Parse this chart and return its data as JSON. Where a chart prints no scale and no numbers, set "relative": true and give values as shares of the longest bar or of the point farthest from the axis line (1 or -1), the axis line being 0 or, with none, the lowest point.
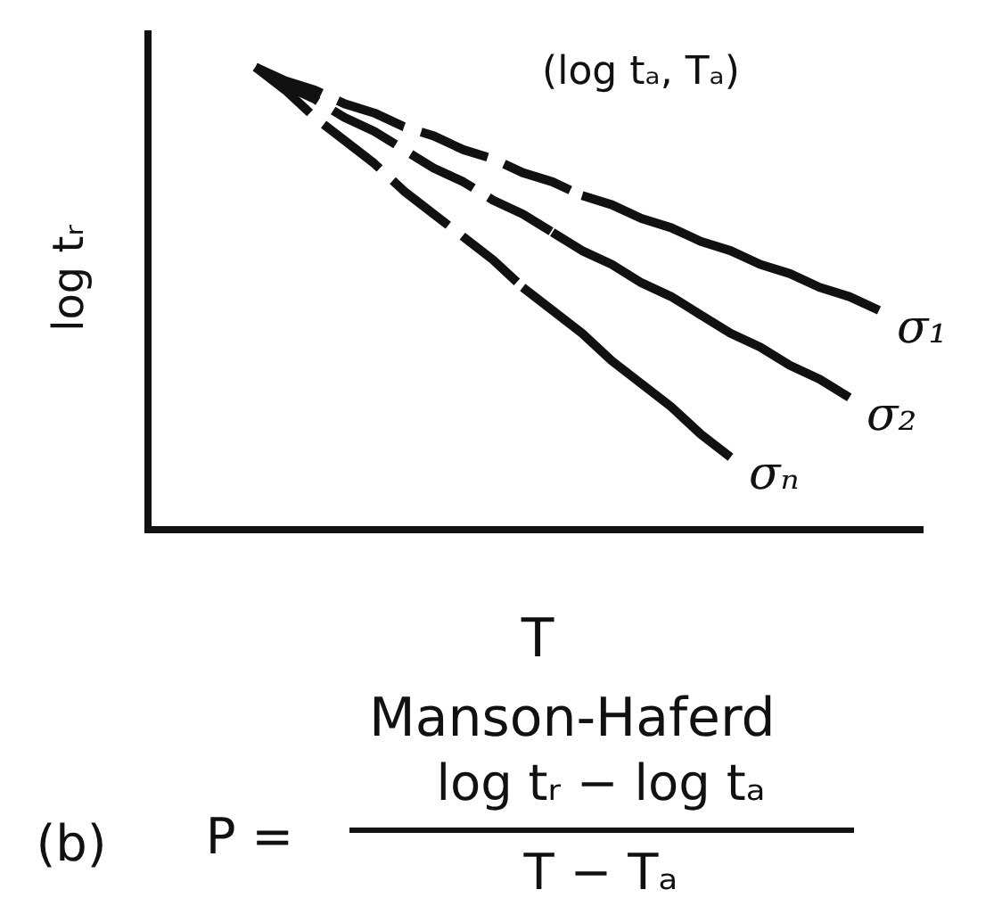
{
  "chart_data": {
    "type": "line",
    "relative": true,
    "title": "Manson-Haferd",
    "xlabel": "T",
    "ylabel": "log tᵣ",
    "annotations": [
      "(log tₐ, Tₐ)",
      "(b)",
      "P =",
      "log tᵣ − log tₐ",
      "T − Tₐ"
    ],
    "categories": [
      null,
      null,
      null,
      null,
      null,
      null,
      null,
      null,
      null,
      null,
      null,
      null,
      null,
      null,
      null,
      null,
      null,
      null,
      null,
      null,
      null,
      null,
      null,
      null,
      null,
      null
    ],
    "tick_labels": false,
    "series": [
      {
        "color": "#111111",
        "line_style": "dashed",
        "values": [
          null,
          null,
          null,
          1.0,
          0.97,
          0.95,
          0.92,
          0.9,
          0.87,
          0.85,
          0.82,
          0.8,
          0.77,
          0.75,
          0.72,
          null,
          null,
          null,
          null,
          null,
          null,
          null,
          null,
          null,
          null,
          null
        ]
      },
      {
        "name": "σ₁",
        "color": "#111111",
        "line_style": "solid",
        "values": [
          null,
          null,
          null,
          null,
          null,
          null,
          null,
          null,
          null,
          null,
          null,
          null,
          null,
          null,
          0.72,
          0.7,
          0.67,
          0.65,
          0.62,
          0.6,
          0.57,
          0.55,
          0.52,
          0.5,
          0.47,
          null
        ]
      },
      {
        "color": "#111111",
        "line_style": "dashed",
        "values": [
          null,
          null,
          null,
          1.0,
          0.96,
          0.93,
          0.89,
          0.86,
          0.82,
          0.78,
          0.75,
          0.71,
          0.68,
          0.64,
          null,
          null,
          null,
          null,
          null,
          null,
          null,
          null,
          null,
          null,
          null,
          null
        ]
      },
      {
        "name": "σ₂",
        "color": "#111111",
        "line_style": "solid",
        "values": [
          null,
          null,
          null,
          null,
          null,
          null,
          null,
          null,
          null,
          null,
          null,
          null,
          null,
          0.64,
          0.6,
          0.57,
          0.53,
          0.5,
          0.46,
          0.42,
          0.39,
          0.35,
          0.32,
          0.28,
          null,
          null
        ]
      },
      {
        "color": "#111111",
        "line_style": "dashed",
        "values": [
          null,
          null,
          null,
          1.0,
          0.95,
          0.89,
          0.84,
          0.79,
          0.73,
          0.68,
          0.63,
          0.58,
          0.52,
          null,
          null,
          null,
          null,
          null,
          null,
          null,
          null,
          null,
          null,
          null,
          null,
          null
        ]
      },
      {
        "name": "σₙ",
        "color": "#111111",
        "line_style": "solid",
        "values": [
          null,
          null,
          null,
          null,
          null,
          null,
          null,
          null,
          null,
          null,
          null,
          null,
          0.52,
          0.47,
          0.42,
          0.36,
          0.31,
          0.26,
          0.2,
          0.15,
          null,
          null,
          null,
          null,
          null,
          null
        ]
      }
    ]
  }
}
